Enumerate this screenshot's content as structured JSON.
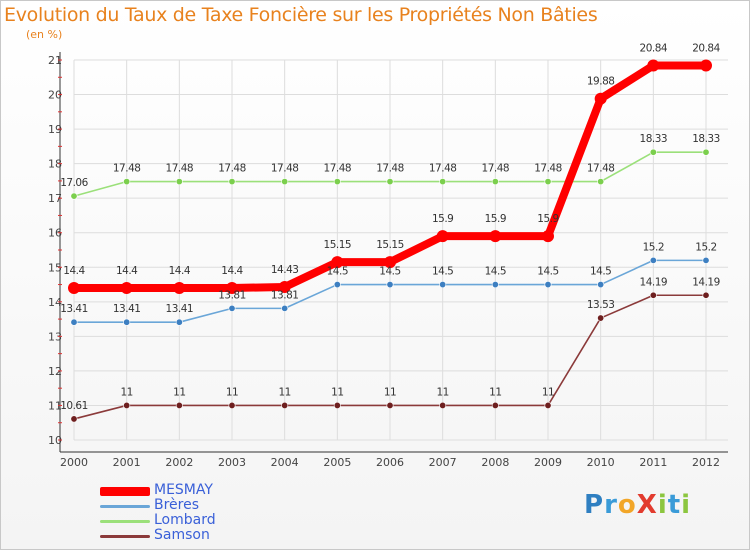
{
  "title": "Evolution du Taux de Taxe Foncière sur les Propriétés Non Bâties",
  "subtitle": "(en %)",
  "logo": {
    "text": "Proxiti",
    "letters": [
      {
        "ch": "P",
        "color": "#2f7fc1"
      },
      {
        "ch": "r",
        "color": "#3a9bd8"
      },
      {
        "ch": "o",
        "color": "#f2a628"
      },
      {
        "ch": "X",
        "color": "#e23b2e"
      },
      {
        "ch": "i",
        "color": "#8cc63f"
      },
      {
        "ch": "t",
        "color": "#3a9bd8"
      },
      {
        "ch": "i",
        "color": "#8cc63f"
      }
    ]
  },
  "chart_data": {
    "type": "line",
    "title": "Evolution du Taux de Taxe Foncière sur les Propriétés Non Bâties",
    "ylabel": "(en %)",
    "xlabel": "",
    "x": [
      "2000",
      "2001",
      "2002",
      "2003",
      "2004",
      "2005",
      "2006",
      "2007",
      "2008",
      "2009",
      "2010",
      "2011",
      "2012"
    ],
    "ylim": [
      10,
      21
    ],
    "yticks": [
      "10",
      "11",
      "12",
      "13",
      "14",
      "15",
      "16",
      "17",
      "18",
      "19",
      "20",
      "21"
    ],
    "grid": true,
    "legend_position": "bottom-left",
    "series": [
      {
        "name": "MESMAY",
        "color": "#ff0000",
        "marker_color": "#ff0000",
        "label_color": "#333333",
        "emphasis": true,
        "values": [
          14.4,
          14.4,
          14.4,
          14.4,
          14.43,
          15.15,
          15.15,
          15.9,
          15.9,
          15.9,
          19.88,
          20.84,
          20.84
        ],
        "labels": [
          "14.4",
          "14.4",
          "14.4",
          "14.4",
          "14.43",
          "15.15",
          "15.15",
          "15.9",
          "15.9",
          "15.9",
          "19.88",
          "20.84",
          "20.84"
        ]
      },
      {
        "name": "Brères",
        "color": "#6aa6d8",
        "marker_color": "#3d7fc1",
        "label_color": "#333333",
        "emphasis": false,
        "values": [
          13.41,
          13.41,
          13.41,
          13.81,
          13.81,
          14.5,
          14.5,
          14.5,
          14.5,
          14.5,
          14.5,
          15.2,
          15.2
        ],
        "labels": [
          "13.41",
          "13.41",
          "13.41",
          "13.81",
          "13.81",
          "14.5",
          "14.5",
          "14.5",
          "14.5",
          "14.5",
          "14.5",
          "15.2",
          "15.2"
        ]
      },
      {
        "name": "Lombard",
        "color": "#9be07a",
        "marker_color": "#7bcf4d",
        "label_color": "#333333",
        "emphasis": false,
        "values": [
          17.06,
          17.48,
          17.48,
          17.48,
          17.48,
          17.48,
          17.48,
          17.48,
          17.48,
          17.48,
          17.48,
          18.33,
          18.33
        ],
        "labels": [
          "17.06",
          "17.48",
          "17.48",
          "17.48",
          "17.48",
          "17.48",
          "17.48",
          "17.48",
          "17.48",
          "17.48",
          "17.48",
          "18.33",
          "18.33"
        ]
      },
      {
        "name": "Samson",
        "color": "#8b3a3a",
        "marker_color": "#6e1f1f",
        "label_color": "#333333",
        "emphasis": false,
        "values": [
          10.61,
          11,
          11,
          11,
          11,
          11,
          11,
          11,
          11,
          11,
          13.53,
          14.19,
          14.19
        ],
        "labels": [
          "10.61",
          "11",
          "11",
          "11",
          "11",
          "11",
          "11",
          "11",
          "11",
          "11",
          "13.53",
          "14.19",
          "14.19"
        ]
      }
    ]
  },
  "legend": [
    {
      "label": "MESMAY",
      "color": "#ff0000",
      "text_color": "#3a60d8"
    },
    {
      "label": "Brères",
      "color": "#6aa6d8",
      "text_color": "#3a60d8"
    },
    {
      "label": "Lombard",
      "color": "#9be07a",
      "text_color": "#3a60d8"
    },
    {
      "label": "Samson",
      "color": "#8b3a3a",
      "text_color": "#3a60d8"
    }
  ],
  "colors": {
    "title": "#e8821e",
    "grid": "#dddddd",
    "axis": "#555555"
  }
}
